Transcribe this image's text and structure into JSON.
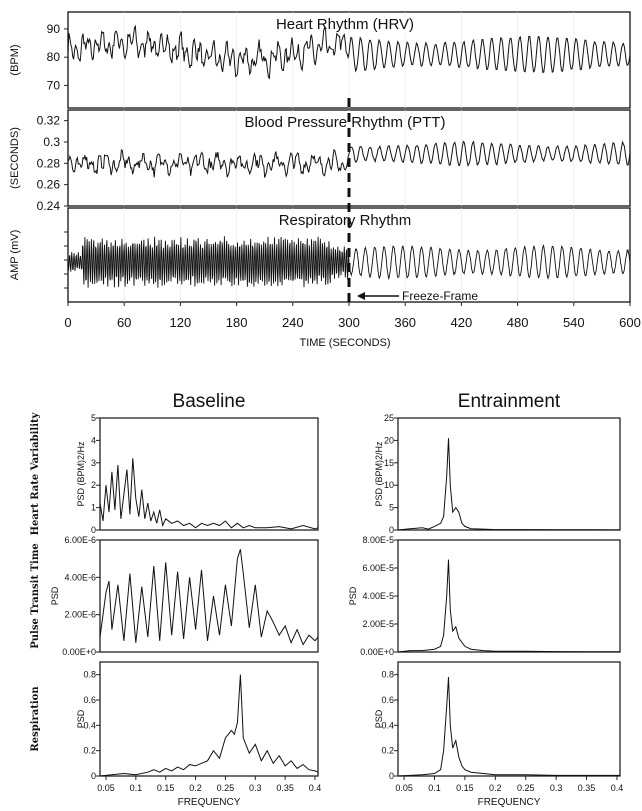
{
  "chart_data": [
    {
      "type": "line",
      "title": "Heart Rhythm (HRV)",
      "ylabel": "(BPM)",
      "y_ticks": [
        "90",
        "80",
        "70"
      ],
      "ylim": [
        62,
        96
      ],
      "xlim": [
        0,
        600
      ],
      "series": [
        {
          "mean": 82,
          "amplitude_before": 5,
          "amplitude_after": 6.5,
          "period_after_s": 10
        }
      ]
    },
    {
      "type": "line",
      "title": "Blood Pressure Rhythm (PTT)",
      "ylabel": "(SECONDS)",
      "y_ticks": [
        "0.32",
        "0.3",
        "0.28",
        "0.26",
        "0.24"
      ],
      "ylim": [
        0.24,
        0.33
      ],
      "xlim": [
        0,
        600
      ],
      "series": [
        {
          "mean": 0.285,
          "amplitude_before": 0.009,
          "amplitude_after": 0.011,
          "period_after_s": 10
        }
      ]
    },
    {
      "type": "line",
      "title": "Respiratory Rhythm",
      "ylabel": "AMP (mV)",
      "y_ticks": [],
      "xlim": [
        0,
        600
      ],
      "xlabel": "TIME (SECONDS)",
      "x_ticks": [
        0,
        60,
        120,
        180,
        240,
        300,
        360,
        420,
        480,
        540,
        600
      ],
      "annotation": {
        "text": "Freeze-Frame",
        "x": 300
      }
    }
  ],
  "spectra": {
    "baseline_title": "Baseline",
    "entrainment_title": "Entrainment",
    "row_labels": [
      "Heart Rate Variability",
      "Pulse Transit Time",
      "Respiration"
    ],
    "xlabel": "FREQUENCY",
    "x_ticks": [
      "0.05",
      "0.1",
      "0.15",
      "0.2",
      "0.25",
      "0.3",
      "0.35",
      "0.4"
    ],
    "xlim": [
      0.04,
      0.405
    ],
    "panels": [
      {
        "col": "baseline",
        "row": 0,
        "ylabel": "PSD (BPM)2/Hz",
        "y_ticks": [
          "5",
          "4",
          "3",
          "2",
          "1",
          "0"
        ],
        "ylim": [
          0,
          5
        ],
        "x": [
          0.04,
          0.045,
          0.05,
          0.055,
          0.06,
          0.065,
          0.07,
          0.075,
          0.08,
          0.085,
          0.09,
          0.095,
          0.1,
          0.105,
          0.11,
          0.115,
          0.12,
          0.125,
          0.13,
          0.135,
          0.14,
          0.145,
          0.15,
          0.16,
          0.17,
          0.18,
          0.19,
          0.2,
          0.21,
          0.22,
          0.23,
          0.24,
          0.25,
          0.26,
          0.27,
          0.28,
          0.29,
          0.3,
          0.32,
          0.34,
          0.36,
          0.38,
          0.4,
          0.405
        ],
        "y": [
          1.2,
          0.4,
          2.0,
          0.8,
          2.6,
          0.9,
          2.9,
          0.5,
          1.6,
          2.7,
          0.7,
          3.2,
          1.4,
          0.6,
          1.8,
          0.5,
          1.2,
          0.4,
          0.8,
          0.3,
          0.9,
          0.2,
          0.5,
          0.3,
          0.4,
          0.2,
          0.3,
          0.1,
          0.3,
          0.2,
          0.3,
          0.2,
          0.4,
          0.1,
          0.3,
          0.1,
          0.2,
          0.1,
          0.1,
          0.15,
          0.05,
          0.2,
          0.05,
          0.1
        ]
      },
      {
        "col": "baseline",
        "row": 1,
        "ylabel": "PSD",
        "y_ticks": [
          "6.00E-6",
          "4.00E-6",
          "2.00E-6",
          "0.00E+0"
        ],
        "ylim": [
          0,
          6e-06
        ],
        "x": [
          0.04,
          0.05,
          0.055,
          0.06,
          0.07,
          0.08,
          0.09,
          0.1,
          0.11,
          0.12,
          0.13,
          0.14,
          0.15,
          0.16,
          0.17,
          0.18,
          0.19,
          0.2,
          0.21,
          0.22,
          0.23,
          0.24,
          0.25,
          0.26,
          0.27,
          0.275,
          0.28,
          0.29,
          0.3,
          0.31,
          0.32,
          0.33,
          0.34,
          0.35,
          0.36,
          0.37,
          0.38,
          0.39,
          0.4,
          0.405
        ],
        "y": [
          8e-07,
          3.2e-06,
          3.8e-06,
          1.2e-06,
          3.6e-06,
          6e-07,
          4.2e-06,
          5e-07,
          3.5e-06,
          8e-07,
          4.6e-06,
          6e-07,
          4.8e-06,
          9e-07,
          4.3e-06,
          7e-07,
          4e-06,
          1.2e-06,
          4.4e-06,
          6e-07,
          3e-06,
          9e-07,
          3.6e-06,
          1.4e-06,
          5e-06,
          5.5e-06,
          4.2e-06,
          1.3e-06,
          3.6e-06,
          8e-07,
          2.2e-06,
          1.6e-06,
          9e-07,
          1.4e-06,
          5e-07,
          1.2e-06,
          4e-07,
          9e-07,
          6e-07,
          8e-07
        ]
      },
      {
        "col": "baseline",
        "row": 2,
        "ylabel": "PSD",
        "y_ticks": [
          "0.8",
          "0.6",
          "0.4",
          "0.2",
          "0"
        ],
        "ylim": [
          0,
          0.9
        ],
        "x": [
          0.04,
          0.06,
          0.08,
          0.1,
          0.12,
          0.13,
          0.14,
          0.15,
          0.16,
          0.17,
          0.18,
          0.19,
          0.2,
          0.21,
          0.22,
          0.23,
          0.24,
          0.25,
          0.26,
          0.265,
          0.27,
          0.275,
          0.28,
          0.29,
          0.3,
          0.31,
          0.32,
          0.33,
          0.34,
          0.35,
          0.36,
          0.37,
          0.38,
          0.39,
          0.4,
          0.405
        ],
        "y": [
          0,
          0.01,
          0.02,
          0.01,
          0.03,
          0.05,
          0.03,
          0.06,
          0.04,
          0.07,
          0.05,
          0.09,
          0.08,
          0.1,
          0.12,
          0.2,
          0.14,
          0.3,
          0.36,
          0.33,
          0.42,
          0.8,
          0.3,
          0.18,
          0.25,
          0.12,
          0.2,
          0.1,
          0.16,
          0.08,
          0.12,
          0.06,
          0.09,
          0.05,
          0.04,
          0.03
        ]
      },
      {
        "col": "entrainment",
        "row": 0,
        "ylabel": "PSD (BPM)2/Hz",
        "y_ticks": [
          "25",
          "20",
          "15",
          "10",
          "5",
          "0"
        ],
        "ylim": [
          0,
          25
        ],
        "x": [
          0.04,
          0.06,
          0.08,
          0.09,
          0.1,
          0.11,
          0.115,
          0.12,
          0.123,
          0.126,
          0.13,
          0.135,
          0.14,
          0.145,
          0.15,
          0.16,
          0.18,
          0.2,
          0.25,
          0.3,
          0.35,
          0.4,
          0.405
        ],
        "y": [
          0,
          0.3,
          0.5,
          0.2,
          0.8,
          1.5,
          3,
          12,
          20.5,
          10,
          4,
          5,
          4,
          1.5,
          0.8,
          0.3,
          0.2,
          0.1,
          0.1,
          0.05,
          0.05,
          0.03,
          0.03
        ]
      },
      {
        "col": "entrainment",
        "row": 1,
        "ylabel": "PSD",
        "y_ticks": [
          "8.00E-5",
          "6.00E-5",
          "4.00E-5",
          "2.00E-5",
          "0.00E+0"
        ],
        "ylim": [
          0,
          8e-05
        ],
        "x": [
          0.04,
          0.06,
          0.08,
          0.1,
          0.11,
          0.115,
          0.12,
          0.123,
          0.126,
          0.13,
          0.135,
          0.14,
          0.15,
          0.16,
          0.18,
          0.2,
          0.25,
          0.3,
          0.35,
          0.4,
          0.405
        ],
        "y": [
          0,
          1e-06,
          1e-06,
          2e-06,
          4e-06,
          1.2e-05,
          4e-05,
          6.6e-05,
          3e-05,
          1.5e-05,
          1.8e-05,
          1e-05,
          4e-06,
          2e-06,
          1e-06,
          5e-07,
          5e-07,
          3e-07,
          2e-07,
          2e-07,
          2e-07
        ]
      },
      {
        "col": "entrainment",
        "row": 2,
        "ylabel": "PSD",
        "y_ticks": [
          "0.8",
          "0.6",
          "0.4",
          "0.2",
          "0"
        ],
        "ylim": [
          0,
          0.9
        ],
        "x": [
          0.04,
          0.06,
          0.08,
          0.1,
          0.11,
          0.115,
          0.12,
          0.123,
          0.126,
          0.13,
          0.135,
          0.14,
          0.145,
          0.15,
          0.16,
          0.18,
          0.2,
          0.25,
          0.3,
          0.35,
          0.4,
          0.405
        ],
        "y": [
          0,
          0.005,
          0.01,
          0.02,
          0.05,
          0.2,
          0.55,
          0.78,
          0.4,
          0.22,
          0.28,
          0.15,
          0.08,
          0.05,
          0.03,
          0.02,
          0.01,
          0.01,
          0.005,
          0.005,
          0.005,
          0.005
        ]
      }
    ]
  }
}
